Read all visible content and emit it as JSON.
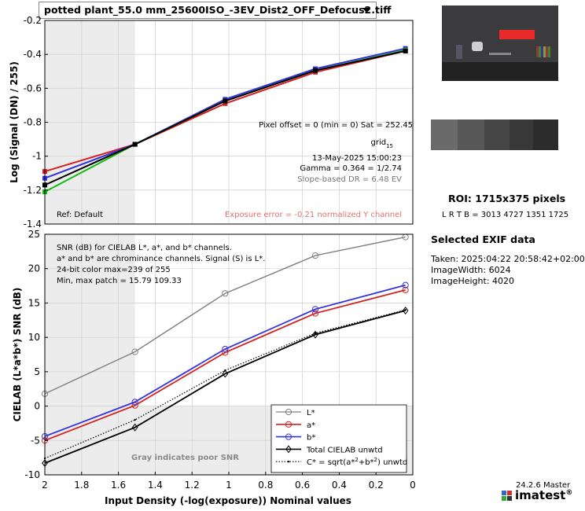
{
  "file_selector": {
    "value": "potted plant_55.0 mm_25600ISO_-3EV_Dist2_OFF_Defocus2.tiff"
  },
  "side_panel": {
    "roi_label": "ROI:  1715x375 pixels",
    "roi_coords": "L R  T B = 3013 4727  1351 1725",
    "exif_title": "Selected EXIF data",
    "exif_lines": [
      "Taken: 2025:04:22 20:58:42+02:00",
      "ImageWidth:  6024",
      "ImageHeight:  4020"
    ]
  },
  "footer": {
    "version": "24.2.6 Master",
    "brand": "imatest",
    "registered": "®"
  },
  "colors": {
    "red": "#d62020",
    "blue": "#3333dd",
    "green": "#11bb11",
    "black": "#000000",
    "gray": "#808080",
    "salmon": "#e07070",
    "shade": "#ececec",
    "shade_dark": "#e0e0e0"
  },
  "chart_data": [
    {
      "type": "line",
      "ylabel": "Log (Signal (DN) / 255)",
      "ylim": [
        -1.4,
        -0.2
      ],
      "xlim": [
        2,
        0
      ],
      "yticks": [
        "-0.2",
        "-0.4",
        "-0.6",
        "-0.8",
        "-1",
        "-1.2",
        "-1.4"
      ],
      "grid": true,
      "poor_region_x": [
        2,
        1.51
      ],
      "series": [
        {
          "color": "red",
          "x": [
            2,
            1.51,
            1.02,
            0.53,
            0.04
          ],
          "y": [
            -1.09,
            -0.93,
            -0.69,
            -0.505,
            -0.38
          ]
        },
        {
          "color": "blue",
          "x": [
            2,
            1.51,
            1.02,
            0.53,
            0.04
          ],
          "y": [
            -1.13,
            -0.93,
            -0.665,
            -0.485,
            -0.365
          ]
        },
        {
          "color": "green",
          "x": [
            2,
            1.51,
            1.02,
            0.53,
            0.04
          ],
          "y": [
            -1.21,
            -0.93,
            -0.675,
            -0.495,
            -0.375
          ]
        },
        {
          "color": "black",
          "x": [
            2,
            1.51,
            1.02,
            0.53,
            0.04
          ],
          "y": [
            -1.17,
            -0.93,
            -0.675,
            -0.495,
            -0.38
          ]
        }
      ],
      "annotations": {
        "pixel_offset": "Pixel offset = 0  (min = 0)  Sat = 252.45",
        "grid_base": "grid",
        "grid_sub": "15",
        "date": "13-May-2025 15:00:23",
        "gamma": "Gamma = 0.364 = 1/2.74",
        "dr": "Slope-based DR = 6.48 EV",
        "ref": "Ref: Default",
        "exposure": "Exposure error = -0.21 normalized Y channel"
      }
    },
    {
      "type": "line",
      "ylabel": "CIELAB (L*a*b*)  SNR (dB)",
      "xlabel": "Input Density (-log(exposure))   Nominal values",
      "ylim": [
        -10,
        25
      ],
      "xlim": [
        2,
        0
      ],
      "yticks": [
        "25",
        "20",
        "15",
        "10",
        "5",
        "0",
        "-5",
        "-10"
      ],
      "xticks": [
        "2",
        "1.8",
        "1.6",
        "1.4",
        "1.2",
        "1",
        "0.8",
        "0.6",
        "0.4",
        "0.2",
        "0"
      ],
      "grid": true,
      "poor_snr_label": "Gray indicates poor SNR",
      "info_lines": [
        "SNR (dB) for CIELAB L*, a*, and b* channels.",
        "a* and b* are chrominance channels. Signal (S) is L*.",
        "24-bit color  max=239 of 255",
        "Min, max patch = 15.79  109.33"
      ],
      "x": [
        2,
        1.51,
        1.02,
        0.53,
        0.04
      ],
      "series": [
        {
          "name": "L*",
          "color": "gray",
          "values": [
            1.8,
            7.9,
            16.4,
            21.9,
            24.6
          ]
        },
        {
          "name": "a*",
          "color": "red",
          "values": [
            -5.0,
            0.1,
            7.8,
            13.5,
            16.9
          ]
        },
        {
          "name": "b*",
          "color": "blue",
          "values": [
            -4.4,
            0.6,
            8.3,
            14.1,
            17.6
          ]
        },
        {
          "name": "Total CIELAB unwtd",
          "color": "black",
          "values": [
            -8.3,
            -3.1,
            4.7,
            10.4,
            13.9
          ]
        },
        {
          "name": "C* = sqrt(a*²+b*²) unwtd",
          "legend_parts": [
            "C* = sqrt(a*",
            "2",
            "+b*",
            "2",
            ") unwtd"
          ],
          "color": "black",
          "style": "dotted",
          "values": [
            -7.6,
            -2.0,
            5.2,
            10.6,
            14.0
          ]
        }
      ]
    }
  ]
}
